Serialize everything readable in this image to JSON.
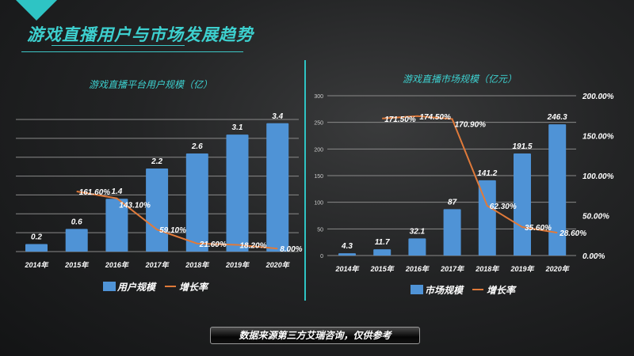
{
  "page": {
    "title": "游戏直播用户与市场发展趋势",
    "source_note": "数据来源第三方艾瑞咨询，仅供参考"
  },
  "colors": {
    "accent": "#3dd0cf",
    "bar": "#4f93d6",
    "line": "#e07a3a"
  },
  "chart_data": [
    {
      "type": "bar",
      "title": "游戏直播平台用户规模（亿）",
      "categories": [
        "2014年",
        "2015年",
        "2016年",
        "2017年",
        "2018年",
        "2019年",
        "2020年"
      ],
      "series": [
        {
          "name": "用户规模",
          "type": "bar",
          "values": [
            0.2,
            0.6,
            1.4,
            2.2,
            2.6,
            3.1,
            3.4
          ],
          "labels": [
            "0.2",
            "0.6",
            "1.4",
            "2.2",
            "2.6",
            "3.1",
            "3.4"
          ]
        },
        {
          "name": "增长率",
          "type": "line",
          "values": [
            null,
            161.6,
            143.1,
            59.1,
            21.6,
            18.2,
            8.0
          ],
          "labels": [
            "",
            "161.60%",
            "143.10%",
            "59.10%",
            "21.60%",
            "18.20%",
            "8.00%"
          ]
        }
      ],
      "ylim": [
        0,
        3.5
      ],
      "grid": true,
      "legend": "bottom"
    },
    {
      "type": "bar",
      "title": "游戏直播市场规模（亿元）",
      "categories": [
        "2014年",
        "2015年",
        "2016年",
        "2017年",
        "2018年",
        "2019年",
        "2020年"
      ],
      "series": [
        {
          "name": "市场规模",
          "type": "bar",
          "values": [
            4.3,
            11.7,
            32.1,
            87,
            141.2,
            191.5,
            246.3
          ],
          "labels": [
            "4.3",
            "11.7",
            "32.1",
            "87",
            "141.2",
            "191.5",
            "246.3"
          ]
        },
        {
          "name": "增长率",
          "type": "line",
          "values": [
            null,
            171.5,
            174.5,
            170.9,
            62.3,
            35.6,
            28.6
          ],
          "labels": [
            "",
            "171.50%",
            "174.50%",
            "170.90%",
            "62.30%",
            "35.60%",
            "28.60%"
          ]
        }
      ],
      "ylim": [
        0,
        300
      ],
      "yticks": [
        "0",
        "50",
        "100",
        "150",
        "200",
        "250",
        "300"
      ],
      "y2lim": [
        0,
        200
      ],
      "y2ticks": [
        "0.00%",
        "50.00%",
        "100.00%",
        "150.00%",
        "200.00%"
      ],
      "grid": true,
      "legend": "bottom"
    }
  ]
}
